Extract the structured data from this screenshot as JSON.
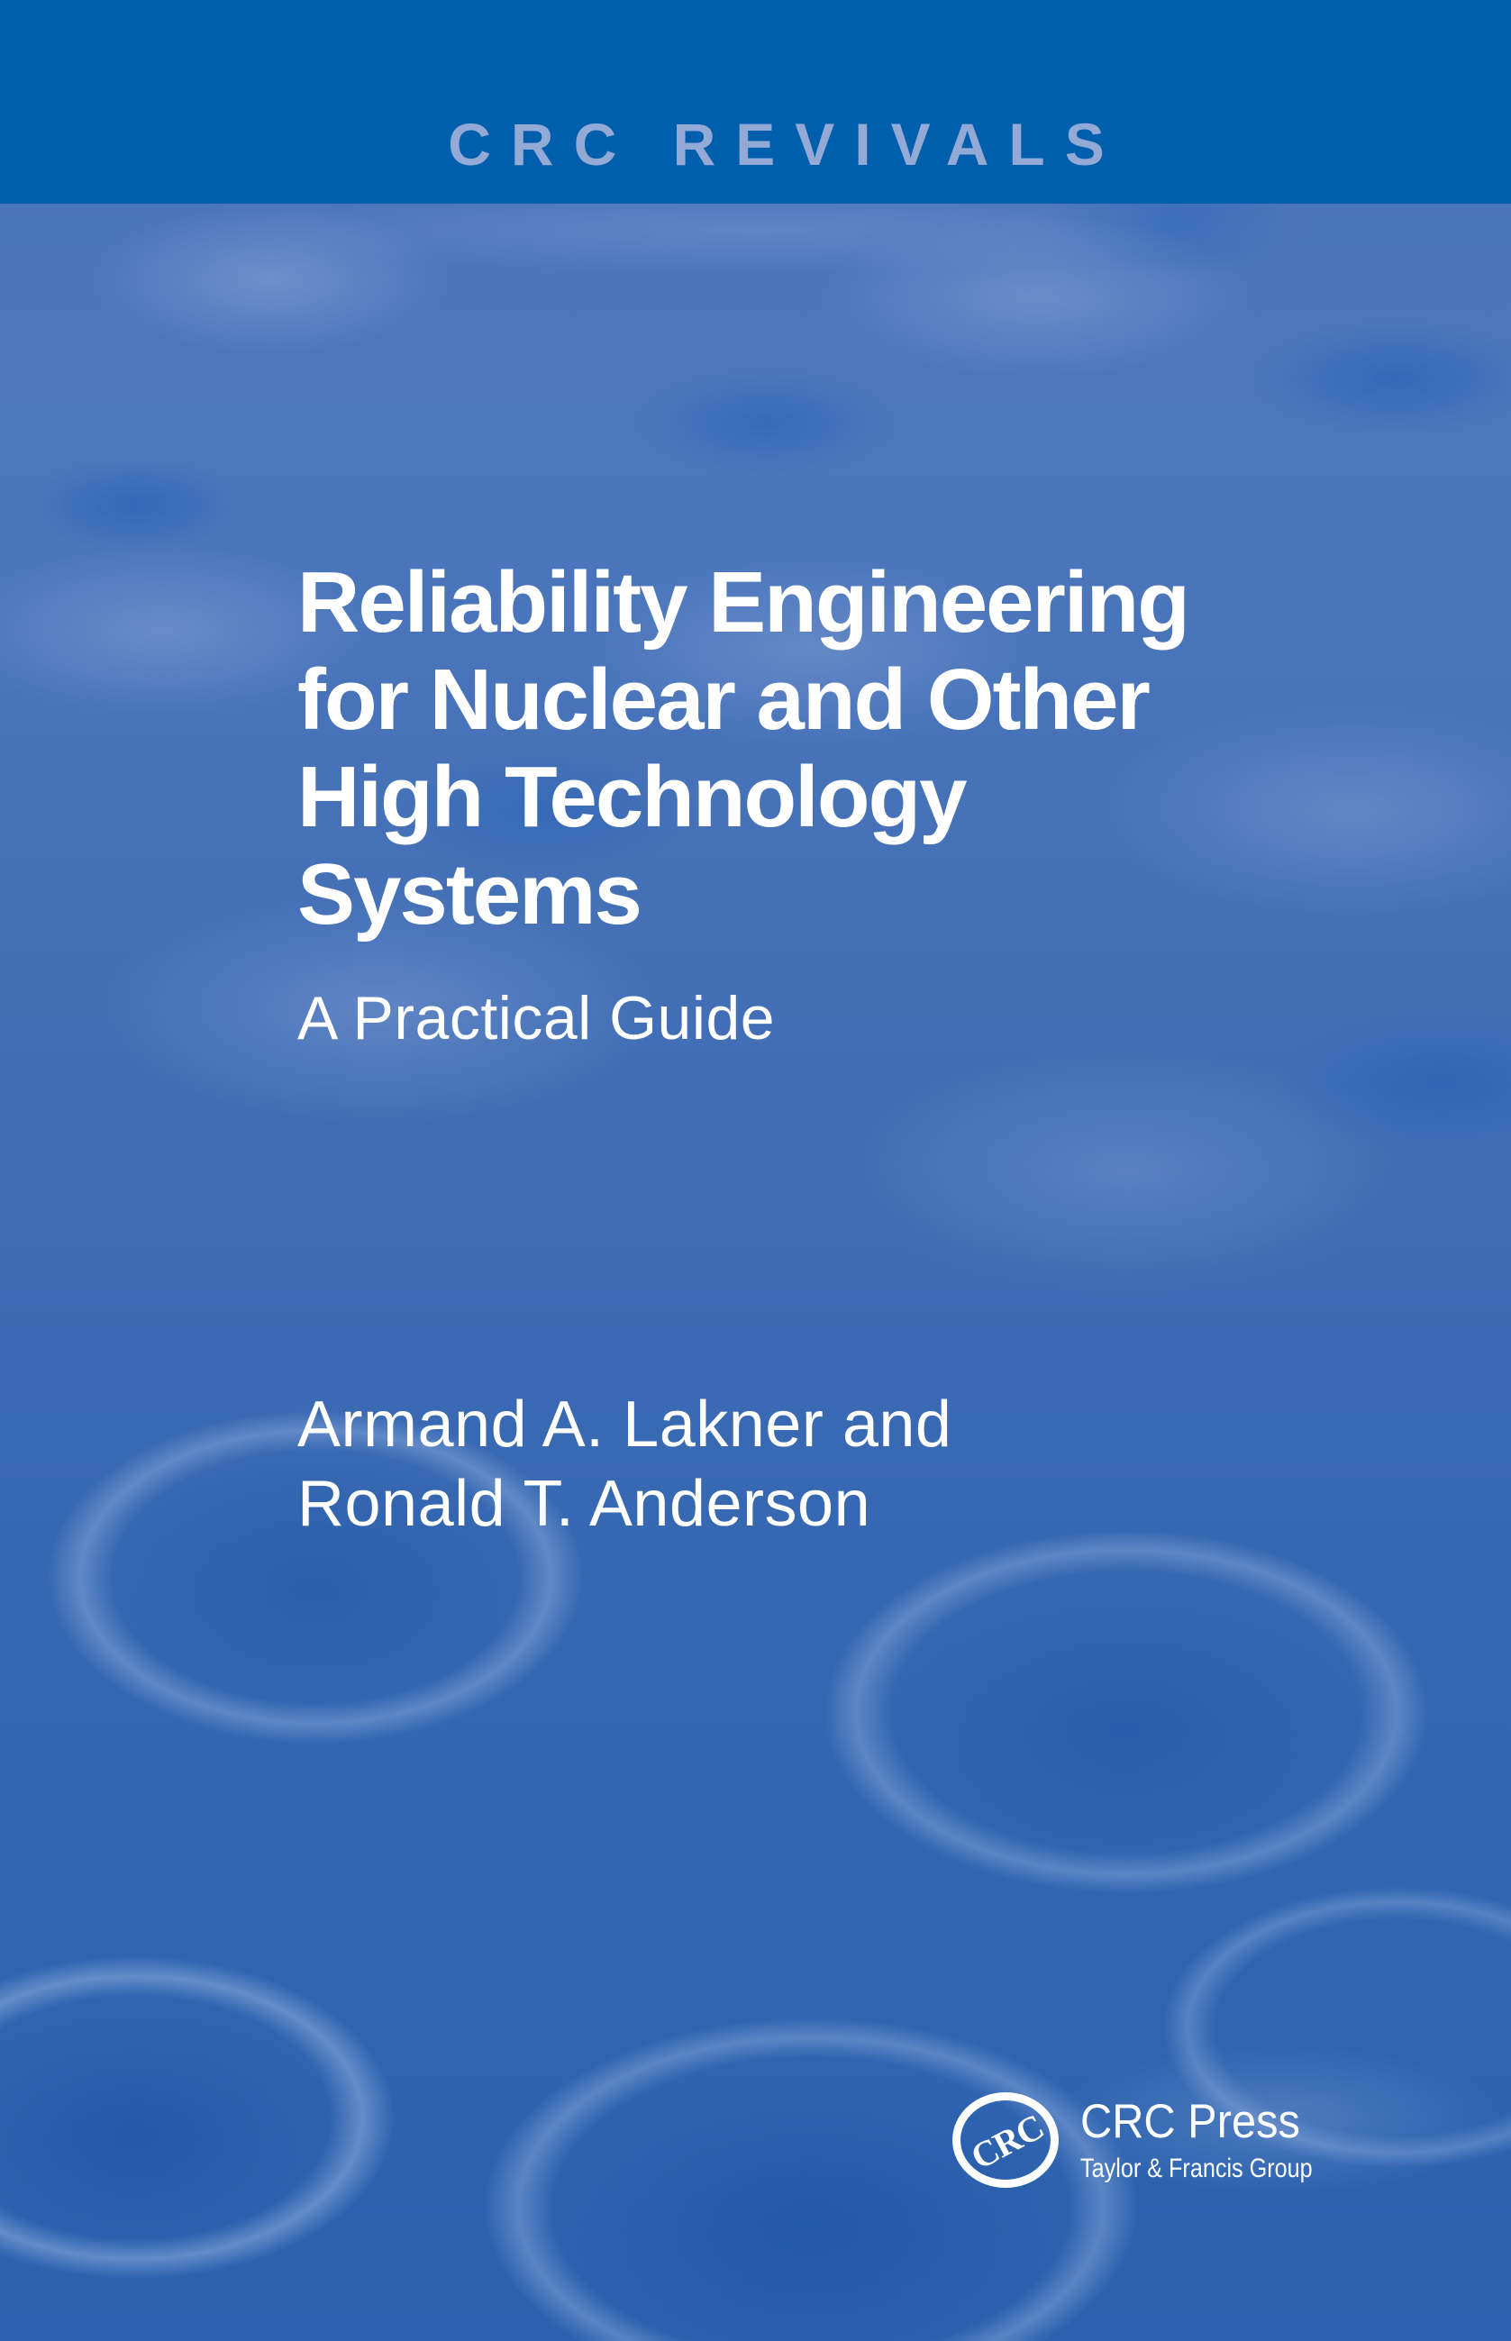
{
  "banner": {
    "series_title": "CRC REVIVALS"
  },
  "cover": {
    "title_lines": [
      "Reliability Engineering",
      "for Nuclear and Other",
      "High Technology",
      "Systems"
    ],
    "subtitle": "A Practical Guide",
    "author_lines": [
      "Armand A. Lakner and",
      "Ronald T. Anderson"
    ]
  },
  "publisher": {
    "monogram": "CRC",
    "name": "CRC Press",
    "group": "Taylor & Francis Group"
  },
  "colors": {
    "banner_bg": "#005FAD",
    "banner_text": "#93A9D6",
    "cover_text": "#FFFFFF",
    "art_base_top": "#4C74BA",
    "art_base_bottom": "#2B61AE",
    "art_dimple_dark": "#1E5CAB",
    "art_highlight": "#93ABD9"
  }
}
